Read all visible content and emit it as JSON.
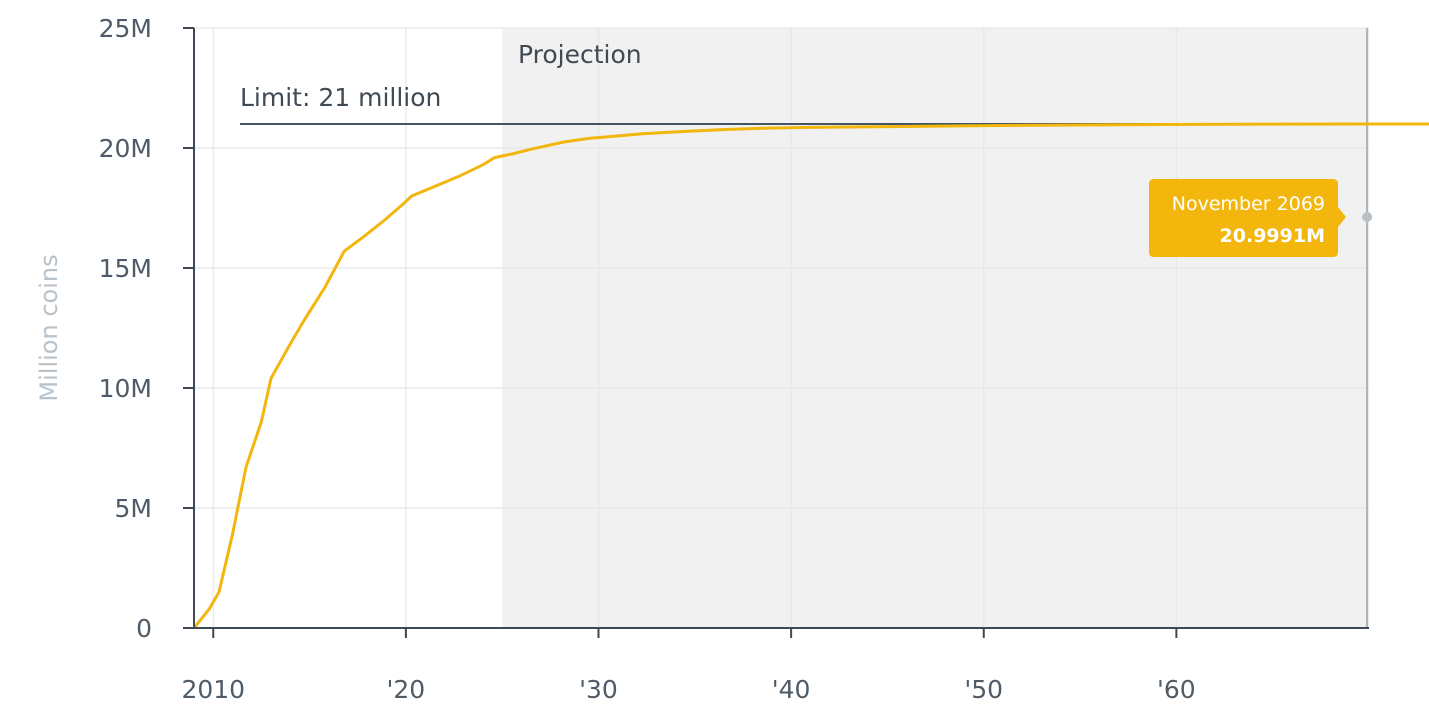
{
  "chart_data": {
    "type": "line",
    "ylabel": "Million coins",
    "xlabel": "",
    "xlim": [
      2009.0,
      2070.0
    ],
    "ylim": [
      0,
      25
    ],
    "y_unit": "million coins",
    "y_ticks": [
      0,
      5,
      10,
      15,
      20,
      25
    ],
    "y_tick_labels": [
      "0",
      "5M",
      "10M",
      "15M",
      "20M",
      "25M"
    ],
    "x_ticks": [
      2010,
      2020,
      2030,
      2040,
      2050,
      2060
    ],
    "x_tick_labels": [
      "2010",
      "'20",
      "'30",
      "'40",
      "'50",
      "'60"
    ],
    "grid": true,
    "series": [
      {
        "color": "#f2b60d",
        "x": [
          2009.0,
          2009.3,
          2009.8,
          2010.3,
          2011.0,
          2011.7,
          2012.5,
          2013.0,
          2013.9,
          2014.7,
          2015.8,
          2016.8,
          2017.8,
          2018.9,
          2019.9,
          2020.3,
          2021.5,
          2022.7,
          2024.0,
          2024.6,
          2025.5,
          2026.5,
          2028.2,
          2029.5,
          2030.5,
          2032.4,
          2034.5,
          2036.6,
          2038.5,
          2040.9,
          2045.0,
          2048.8,
          2053.0,
          2057.0,
          2061.0,
          2065.0,
          2069.9,
          2070.0
        ],
        "y": [
          0.0,
          0.3,
          0.8,
          1.5,
          3.9,
          6.7,
          8.6,
          10.4,
          11.7,
          12.8,
          14.2,
          15.7,
          16.3,
          17.0,
          17.7,
          18.0,
          18.4,
          18.8,
          19.3,
          19.6,
          19.75,
          19.95,
          20.25,
          20.4,
          20.47,
          20.6,
          20.69,
          20.77,
          20.82,
          20.86,
          20.89,
          20.92,
          20.95,
          20.97,
          20.985,
          20.995,
          20.9991,
          21.0
        ]
      }
    ],
    "reference_lines": [
      {
        "y": 21.0,
        "label": "Limit: 21 million",
        "color": "#435563"
      }
    ],
    "projection_region": {
      "x_start": 2025.0,
      "x_end": 2070.0,
      "label": "Projection",
      "color": "#f1f1f1"
    },
    "crosshair": {
      "x": 2069.9,
      "y": 20.9991,
      "date_label": "November 2069",
      "value_label": "20.9991M",
      "color": "#f2b60d"
    }
  }
}
